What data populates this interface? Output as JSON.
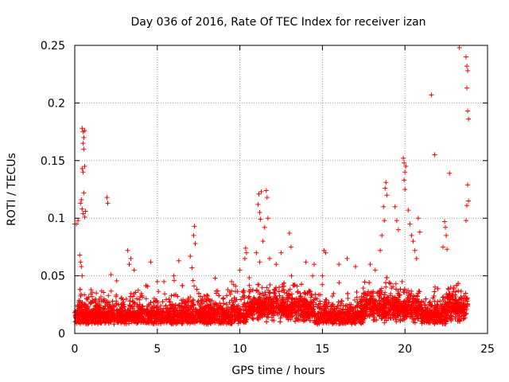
{
  "chart_data": {
    "type": "scatter",
    "title": "Day 036 of 2016, Rate Of TEC Index for receiver izan",
    "xlabel": "GPS time / hours",
    "ylabel": "ROTI / TECUs",
    "xlim": [
      0,
      25
    ],
    "ylim": [
      0,
      0.25
    ],
    "xticks": [
      0,
      5,
      10,
      15,
      20,
      25
    ],
    "yticks": [
      0,
      0.05,
      0.1,
      0.15,
      0.2,
      0.25
    ],
    "xtick_labels": [
      "0",
      "5",
      "10",
      "15",
      "20",
      "25"
    ],
    "ytick_labels": [
      "0",
      "0.05",
      "0.1",
      "0.15",
      "0.2",
      "0.25"
    ],
    "grid": true,
    "marker": "+",
    "color": "#ff0000",
    "series": [
      {
        "name": "ROTI",
        "points": [
          [
            0.0,
            0.095
          ],
          [
            0.1,
            0.095
          ],
          [
            0.2,
            0.098
          ],
          [
            0.3,
            0.068
          ],
          [
            0.35,
            0.062
          ],
          [
            0.4,
            0.058
          ],
          [
            0.45,
            0.05
          ],
          [
            0.35,
            0.113
          ],
          [
            0.4,
            0.116
          ],
          [
            0.45,
            0.108
          ],
          [
            0.5,
            0.104
          ],
          [
            0.55,
            0.122
          ],
          [
            0.6,
            0.101
          ],
          [
            0.65,
            0.106
          ],
          [
            0.45,
            0.178
          ],
          [
            0.5,
            0.175
          ],
          [
            0.55,
            0.17
          ],
          [
            0.6,
            0.176
          ],
          [
            0.5,
            0.165
          ],
          [
            0.55,
            0.16
          ],
          [
            0.45,
            0.143
          ],
          [
            0.5,
            0.14
          ],
          [
            0.6,
            0.145
          ],
          [
            1.95,
            0.118
          ],
          [
            2.0,
            0.113
          ],
          [
            2.2,
            0.051
          ],
          [
            3.2,
            0.072
          ],
          [
            3.4,
            0.065
          ],
          [
            3.3,
            0.06
          ],
          [
            3.6,
            0.055
          ],
          [
            4.6,
            0.062
          ],
          [
            5.0,
            0.045
          ],
          [
            5.4,
            0.045
          ],
          [
            6.0,
            0.05
          ],
          [
            6.3,
            0.063
          ],
          [
            7.0,
            0.067
          ],
          [
            7.1,
            0.057
          ],
          [
            7.2,
            0.085
          ],
          [
            7.25,
            0.093
          ],
          [
            7.3,
            0.078
          ],
          [
            8.5,
            0.048
          ],
          [
            9.5,
            0.045
          ],
          [
            10.0,
            0.055
          ],
          [
            10.3,
            0.065
          ],
          [
            10.35,
            0.074
          ],
          [
            10.4,
            0.07
          ],
          [
            11.1,
            0.112
          ],
          [
            11.15,
            0.121
          ],
          [
            11.2,
            0.105
          ],
          [
            11.25,
            0.099
          ],
          [
            11.3,
            0.123
          ],
          [
            11.6,
            0.124
          ],
          [
            11.65,
            0.118
          ],
          [
            11.7,
            0.1
          ],
          [
            11.5,
            0.092
          ],
          [
            11.4,
            0.08
          ],
          [
            11.0,
            0.07
          ],
          [
            11.2,
            0.062
          ],
          [
            11.8,
            0.065
          ],
          [
            12.2,
            0.06
          ],
          [
            12.5,
            0.07
          ],
          [
            13.0,
            0.087
          ],
          [
            13.1,
            0.075
          ],
          [
            14.0,
            0.062
          ],
          [
            14.5,
            0.06
          ],
          [
            15.0,
            0.05
          ],
          [
            15.1,
            0.072
          ],
          [
            15.2,
            0.07
          ],
          [
            16.0,
            0.06
          ],
          [
            16.5,
            0.065
          ],
          [
            17.0,
            0.058
          ],
          [
            17.9,
            0.06
          ],
          [
            18.2,
            0.055
          ],
          [
            18.5,
            0.072
          ],
          [
            18.8,
            0.126
          ],
          [
            18.85,
            0.131
          ],
          [
            18.9,
            0.12
          ],
          [
            18.7,
            0.11
          ],
          [
            18.75,
            0.098
          ],
          [
            18.6,
            0.085
          ],
          [
            19.4,
            0.11
          ],
          [
            19.5,
            0.098
          ],
          [
            19.6,
            0.09
          ],
          [
            19.9,
            0.152
          ],
          [
            19.95,
            0.148
          ],
          [
            20.0,
            0.14
          ],
          [
            20.05,
            0.145
          ],
          [
            19.95,
            0.133
          ],
          [
            20.0,
            0.125
          ],
          [
            20.2,
            0.107
          ],
          [
            20.3,
            0.095
          ],
          [
            20.4,
            0.085
          ],
          [
            20.5,
            0.08
          ],
          [
            20.6,
            0.072
          ],
          [
            20.7,
            0.065
          ],
          [
            20.8,
            0.1
          ],
          [
            20.9,
            0.088
          ],
          [
            21.6,
            0.207
          ],
          [
            21.8,
            0.155
          ],
          [
            22.3,
            0.075
          ],
          [
            22.4,
            0.097
          ],
          [
            22.45,
            0.092
          ],
          [
            22.5,
            0.085
          ],
          [
            22.55,
            0.073
          ],
          [
            22.7,
            0.139
          ],
          [
            23.3,
            0.248
          ],
          [
            23.7,
            0.24
          ],
          [
            23.75,
            0.232
          ],
          [
            23.8,
            0.228
          ],
          [
            23.75,
            0.213
          ],
          [
            23.8,
            0.193
          ],
          [
            23.85,
            0.186
          ],
          [
            23.8,
            0.129
          ],
          [
            23.85,
            0.115
          ],
          [
            23.75,
            0.111
          ],
          [
            23.7,
            0.098
          ]
        ]
      }
    ]
  }
}
